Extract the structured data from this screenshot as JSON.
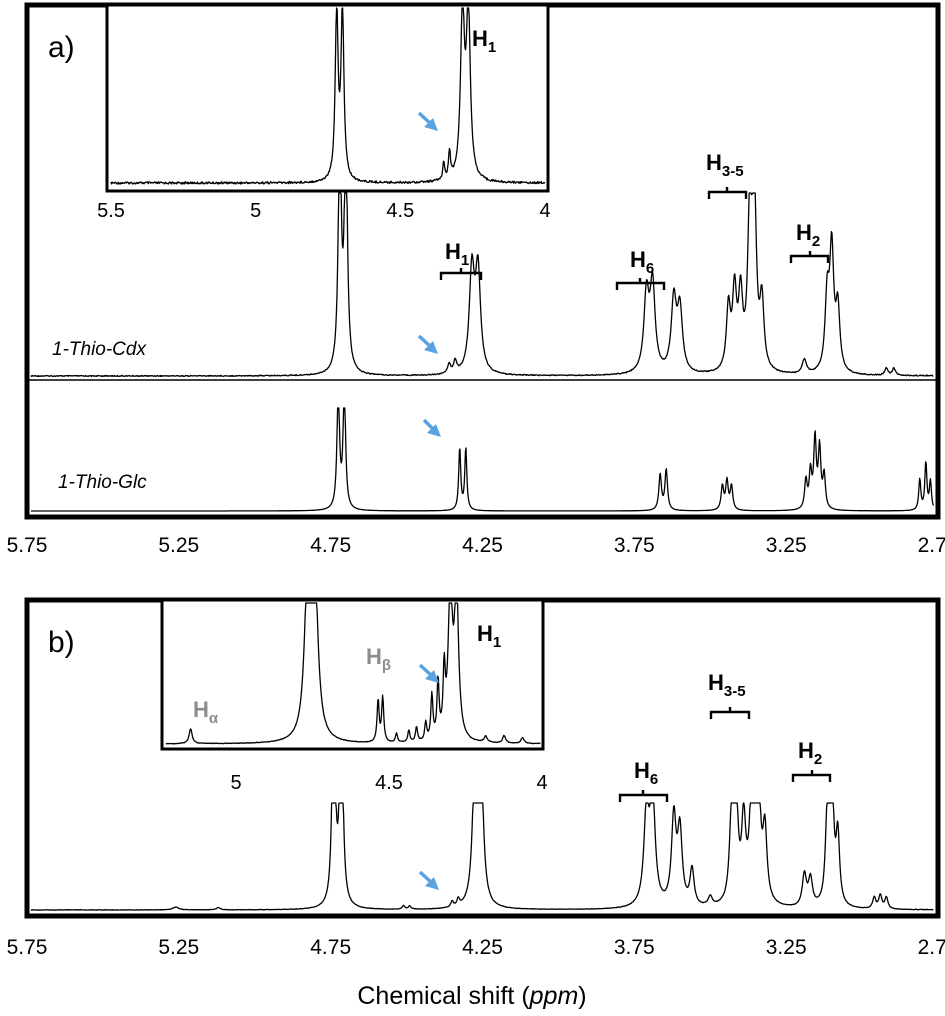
{
  "chart_data": [
    {
      "type": "line",
      "panel": "a)",
      "xlabel": "Chemical shift (ppm)",
      "xlim": [
        5.75,
        2.75
      ],
      "x_ticks": [
        "5.75",
        "5.25",
        "4.75",
        "4.25",
        "3.75",
        "3.25",
        "2.75"
      ],
      "traces": [
        {
          "name": "1-Thio-Cdx",
          "peaks": [
            {
              "ppm": 4.72,
              "height": 1.0,
              "width": 0.006,
              "note": "HOD, clipped"
            },
            {
              "ppm": 4.7,
              "height": 1.0,
              "width": 0.006,
              "note": "HOD, clipped"
            },
            {
              "ppm": 4.285,
              "height": 0.42,
              "width": 0.01
            },
            {
              "ppm": 4.265,
              "height": 0.42,
              "width": 0.01
            },
            {
              "ppm": 4.34,
              "height": 0.05,
              "width": 0.006
            },
            {
              "ppm": 4.36,
              "height": 0.04,
              "width": 0.006
            },
            {
              "ppm": 3.71,
              "height": 0.32,
              "width": 0.01
            },
            {
              "ppm": 3.69,
              "height": 0.36,
              "width": 0.01
            },
            {
              "ppm": 3.62,
              "height": 0.3,
              "width": 0.01
            },
            {
              "ppm": 3.6,
              "height": 0.26,
              "width": 0.01
            },
            {
              "ppm": 3.44,
              "height": 0.26,
              "width": 0.008
            },
            {
              "ppm": 3.42,
              "height": 0.32,
              "width": 0.008
            },
            {
              "ppm": 3.4,
              "height": 0.3,
              "width": 0.008
            },
            {
              "ppm": 3.37,
              "height": 0.62,
              "width": 0.008
            },
            {
              "ppm": 3.355,
              "height": 0.72,
              "width": 0.008
            },
            {
              "ppm": 3.33,
              "height": 0.28,
              "width": 0.008
            },
            {
              "ppm": 3.19,
              "height": 0.06,
              "width": 0.008
            },
            {
              "ppm": 3.115,
              "height": 0.3,
              "width": 0.008
            },
            {
              "ppm": 3.1,
              "height": 0.5,
              "width": 0.008
            },
            {
              "ppm": 3.08,
              "height": 0.26,
              "width": 0.008
            },
            {
              "ppm": 2.92,
              "height": 0.03,
              "width": 0.006
            },
            {
              "ppm": 2.895,
              "height": 0.03,
              "width": 0.006
            }
          ]
        },
        {
          "name": "1-Thio-Glc",
          "peaks": [
            {
              "ppm": 4.725,
              "height": 1.0,
              "width": 0.005,
              "note": "HOD, clipped"
            },
            {
              "ppm": 4.705,
              "height": 1.0,
              "width": 0.005,
              "note": "HOD, clipped"
            },
            {
              "ppm": 4.325,
              "height": 0.52,
              "width": 0.004
            },
            {
              "ppm": 4.305,
              "height": 0.52,
              "width": 0.004
            },
            {
              "ppm": 3.665,
              "height": 0.3,
              "width": 0.005
            },
            {
              "ppm": 3.645,
              "height": 0.34,
              "width": 0.005
            },
            {
              "ppm": 3.46,
              "height": 0.2,
              "width": 0.005
            },
            {
              "ppm": 3.445,
              "height": 0.24,
              "width": 0.005
            },
            {
              "ppm": 3.43,
              "height": 0.2,
              "width": 0.005
            },
            {
              "ppm": 3.185,
              "height": 0.24,
              "width": 0.005
            },
            {
              "ppm": 3.17,
              "height": 0.3,
              "width": 0.005
            },
            {
              "ppm": 3.155,
              "height": 0.58,
              "width": 0.005
            },
            {
              "ppm": 3.14,
              "height": 0.5,
              "width": 0.005
            },
            {
              "ppm": 3.125,
              "height": 0.28,
              "width": 0.005
            },
            {
              "ppm": 2.81,
              "height": 0.26,
              "width": 0.004
            },
            {
              "ppm": 2.79,
              "height": 0.4,
              "width": 0.004
            },
            {
              "ppm": 2.775,
              "height": 0.24,
              "width": 0.004
            }
          ]
        }
      ],
      "peak_labels": [
        {
          "main": "H",
          "sub": "1",
          "ppm": 4.27
        },
        {
          "main": "H",
          "sub": "6",
          "ppm": 3.655
        },
        {
          "main": "H",
          "sub": "3-5",
          "ppm": 3.39
        },
        {
          "main": "H",
          "sub": "2",
          "ppm": 3.1
        }
      ],
      "inset": {
        "xlim": [
          5.5,
          4.0
        ],
        "x_ticks": [
          "5.5",
          "5",
          "4.5",
          "4"
        ],
        "label": {
          "main": "H",
          "sub": "1"
        },
        "peaks": [
          {
            "ppm": 4.72,
            "height": 1.0,
            "width": 0.006
          },
          {
            "ppm": 4.7,
            "height": 1.0,
            "width": 0.006
          },
          {
            "ppm": 4.285,
            "height": 1.0,
            "width": 0.008
          },
          {
            "ppm": 4.265,
            "height": 1.0,
            "width": 0.008
          },
          {
            "ppm": 4.35,
            "height": 0.1,
            "width": 0.004
          },
          {
            "ppm": 4.33,
            "height": 0.16,
            "width": 0.004
          }
        ]
      }
    },
    {
      "type": "line",
      "panel": "b)",
      "xlabel": "Chemical shift (ppm)",
      "xlim": [
        5.75,
        2.75
      ],
      "x_ticks": [
        "5.75",
        "5.25",
        "4.75",
        "4.25",
        "3.75",
        "3.25",
        "2.75"
      ],
      "traces": [
        {
          "name": "",
          "peaks": [
            {
              "ppm": 4.74,
              "height": 1.0,
              "width": 0.006,
              "note": "HOD, clipped"
            },
            {
              "ppm": 4.715,
              "height": 1.0,
              "width": 0.006,
              "note": "HOD, clipped"
            },
            {
              "ppm": 5.26,
              "height": 0.012,
              "width": 0.012
            },
            {
              "ppm": 5.12,
              "height": 0.01,
              "width": 0.008
            },
            {
              "ppm": 4.51,
              "height": 0.015,
              "width": 0.005
            },
            {
              "ppm": 4.49,
              "height": 0.015,
              "width": 0.005
            },
            {
              "ppm": 4.275,
              "height": 0.62,
              "width": 0.009
            },
            {
              "ppm": 4.255,
              "height": 0.62,
              "width": 0.009
            },
            {
              "ppm": 4.33,
              "height": 0.03,
              "width": 0.005
            },
            {
              "ppm": 4.35,
              "height": 0.025,
              "width": 0.005
            },
            {
              "ppm": 3.71,
              "height": 0.4,
              "width": 0.01
            },
            {
              "ppm": 3.69,
              "height": 0.48,
              "width": 0.01
            },
            {
              "ppm": 3.62,
              "height": 0.38,
              "width": 0.009
            },
            {
              "ppm": 3.6,
              "height": 0.32,
              "width": 0.009
            },
            {
              "ppm": 3.56,
              "height": 0.16,
              "width": 0.008
            },
            {
              "ppm": 3.5,
              "height": 0.04,
              "width": 0.008
            },
            {
              "ppm": 3.43,
              "height": 0.36,
              "width": 0.008
            },
            {
              "ppm": 3.415,
              "height": 0.44,
              "width": 0.008
            },
            {
              "ppm": 3.39,
              "height": 0.34,
              "width": 0.008
            },
            {
              "ppm": 3.36,
              "height": 0.72,
              "width": 0.008
            },
            {
              "ppm": 3.345,
              "height": 0.8,
              "width": 0.008
            },
            {
              "ppm": 3.32,
              "height": 0.3,
              "width": 0.008
            },
            {
              "ppm": 3.19,
              "height": 0.14,
              "width": 0.008
            },
            {
              "ppm": 3.17,
              "height": 0.12,
              "width": 0.008
            },
            {
              "ppm": 3.115,
              "height": 0.36,
              "width": 0.007
            },
            {
              "ppm": 3.1,
              "height": 0.62,
              "width": 0.007
            },
            {
              "ppm": 3.08,
              "height": 0.3,
              "width": 0.007
            },
            {
              "ppm": 2.96,
              "height": 0.05,
              "width": 0.006
            },
            {
              "ppm": 2.94,
              "height": 0.06,
              "width": 0.006
            },
            {
              "ppm": 2.92,
              "height": 0.05,
              "width": 0.006
            }
          ]
        }
      ],
      "peak_labels": [
        {
          "main": "H",
          "sub": "6",
          "ppm": 3.655
        },
        {
          "main": "H",
          "sub": "3-5",
          "ppm": 3.37
        },
        {
          "main": "H",
          "sub": "2",
          "ppm": 3.1
        }
      ],
      "inset": {
        "xlim": [
          5.2,
          3.98
        ],
        "x_ticks": [
          "5",
          "4.5",
          "4"
        ],
        "label": {
          "main": "H",
          "sub": "1"
        },
        "gray_labels": [
          {
            "main": "H",
            "sub": "α",
            "ppm": 5.12
          },
          {
            "main": "H",
            "sub": "β",
            "ppm": 4.5
          }
        ],
        "peaks": [
          {
            "ppm": 4.74,
            "height": 1.0,
            "width": 0.012
          },
          {
            "ppm": 4.715,
            "height": 1.0,
            "width": 0.012
          },
          {
            "ppm": 5.12,
            "height": 0.1,
            "width": 0.006
          },
          {
            "ppm": 4.51,
            "height": 0.28,
            "width": 0.004
          },
          {
            "ppm": 4.495,
            "height": 0.3,
            "width": 0.004
          },
          {
            "ppm": 4.45,
            "height": 0.06,
            "width": 0.004
          },
          {
            "ppm": 4.41,
            "height": 0.08,
            "width": 0.004
          },
          {
            "ppm": 4.385,
            "height": 0.1,
            "width": 0.004
          },
          {
            "ppm": 4.355,
            "height": 0.12,
            "width": 0.004
          },
          {
            "ppm": 4.335,
            "height": 0.3,
            "width": 0.004
          },
          {
            "ppm": 4.315,
            "height": 0.38,
            "width": 0.004
          },
          {
            "ppm": 4.295,
            "height": 0.42,
            "width": 0.004
          },
          {
            "ppm": 4.275,
            "height": 1.0,
            "width": 0.008
          },
          {
            "ppm": 4.255,
            "height": 1.0,
            "width": 0.008
          },
          {
            "ppm": 4.16,
            "height": 0.04,
            "width": 0.006
          },
          {
            "ppm": 4.1,
            "height": 0.05,
            "width": 0.006
          },
          {
            "ppm": 4.04,
            "height": 0.04,
            "width": 0.006
          }
        ]
      }
    }
  ],
  "axis_title": {
    "prefix": "Chemical shift (",
    "unit": "ppm",
    "suffix": ")"
  }
}
